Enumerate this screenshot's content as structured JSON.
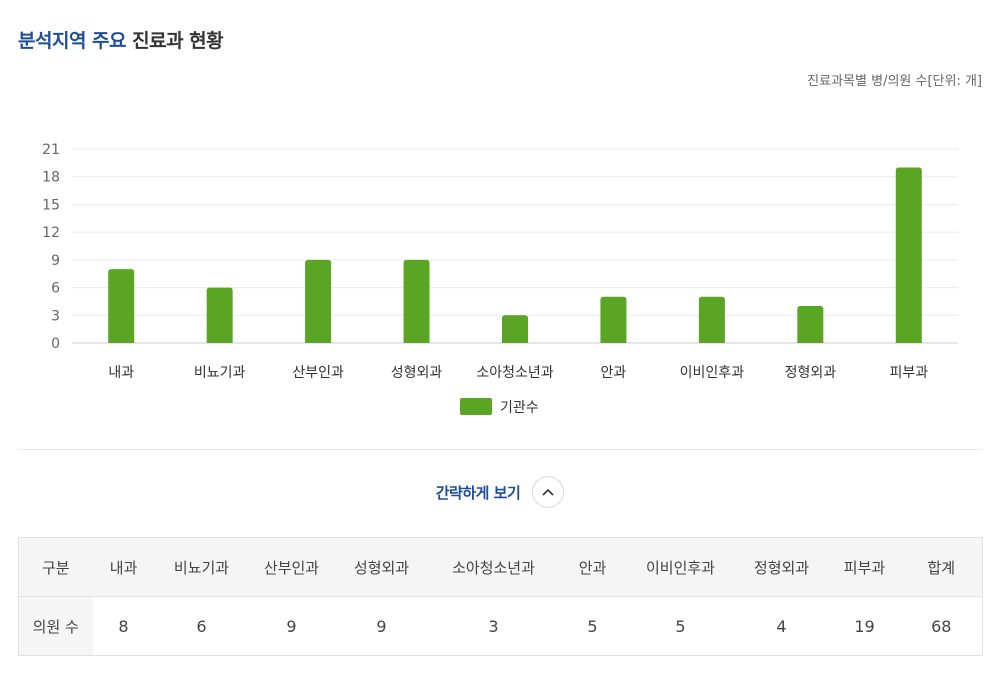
{
  "header": {
    "title_highlight": "분석지역 주요",
    "title_rest": "진료과 현황",
    "unit_note": "진료과목별 병/의원 수[단위: 개]"
  },
  "colors": {
    "accent": "#1f4e99",
    "bar": "#5aa523"
  },
  "chart_data": {
    "type": "bar",
    "categories": [
      "내과",
      "비뇨기과",
      "산부인과",
      "성형외과",
      "소아청소년과",
      "안과",
      "이비인후과",
      "정형외과",
      "피부과"
    ],
    "series": [
      {
        "name": "기관수",
        "values": [
          8,
          6,
          9,
          9,
          3,
          5,
          5,
          4,
          19
        ],
        "color": "#5aa523"
      }
    ],
    "ylim": [
      0,
      21
    ],
    "yticks": [
      0,
      3,
      6,
      9,
      12,
      15,
      18,
      21
    ],
    "grid": true,
    "legend": "bottom-center"
  },
  "toggle": {
    "label": "간략하게 보기",
    "icon": "chevron-up-icon"
  },
  "table": {
    "headers": [
      "구분",
      "내과",
      "비뇨기과",
      "산부인과",
      "성형외과",
      "소아청소년과",
      "안과",
      "이비인후과",
      "정형외과",
      "피부과",
      "합계"
    ],
    "rows": [
      [
        "의원 수",
        "8",
        "6",
        "9",
        "9",
        "3",
        "5",
        "5",
        "4",
        "19",
        "68"
      ]
    ]
  }
}
